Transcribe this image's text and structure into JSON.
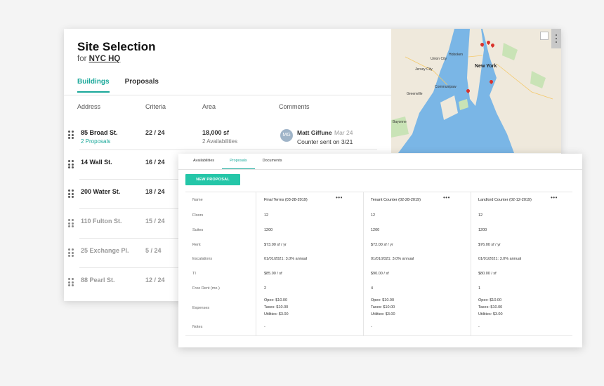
{
  "site": {
    "title": "Site Selection",
    "subtitle_prefix": "for",
    "subtitle_link": "NYC HQ"
  },
  "tabs": [
    {
      "label": "Buildings",
      "active": true
    },
    {
      "label": "Proposals",
      "active": false
    }
  ],
  "columns": [
    "Address",
    "Criteria",
    "Area",
    "Comments"
  ],
  "buildings": [
    {
      "address": "85 Broad St.",
      "sub": "2 Proposals",
      "criteria": "22 / 24",
      "area": "18,000 sf",
      "area_sub": "2 Availabilities",
      "comment": {
        "initials": "MG",
        "name": "Matt Giffune",
        "date": "Mar 24",
        "text": "Counter sent on 3/21"
      }
    },
    {
      "address": "14 Wall St.",
      "criteria": "16 / 24"
    },
    {
      "address": "200 Water St.",
      "criteria": "18 / 24"
    },
    {
      "address": "110 Fulton St.",
      "criteria": "15 / 24"
    },
    {
      "address": "25 Exchange Pl.",
      "criteria": "5 / 24"
    },
    {
      "address": "88 Pearl St.",
      "criteria": "12 / 24"
    }
  ],
  "map": {
    "labels": [
      "New York",
      "Jersey City",
      "Hoboken",
      "Bayonne",
      "Communipaw",
      "Greenville",
      "Union City"
    ],
    "pin_color": "#d9322b",
    "water_color": "#7ab6e6",
    "land_color": "#efe9dc"
  },
  "detail": {
    "tabs": [
      {
        "label": "Availabilities",
        "active": false
      },
      {
        "label": "Proposals",
        "active": true
      },
      {
        "label": "Documents",
        "active": false
      }
    ],
    "new_button": "NEW PROPOSAL",
    "accent": "#24c6a8",
    "row_labels": [
      "Name",
      "Floors",
      "Suites",
      "Rent",
      "Escalations",
      "TI",
      "Free Rent (mo.)",
      "Expenses",
      "Notes"
    ],
    "proposals": [
      {
        "name": "Final Terms (03-28-2019)",
        "floors": "12",
        "suites": "1200",
        "rent": "$73.00 sf / yr",
        "escalations": "01/01/2021: 3.0% annual",
        "ti": "$85.00 / sf",
        "free_rent": "2",
        "expenses": [
          "Opex: $10.00",
          "Taxes: $10.00",
          "Utilities: $3.00"
        ],
        "notes": "-"
      },
      {
        "name": "Tenant Counter (02-28-2019)",
        "floors": "12",
        "suites": "1200",
        "rent": "$72.00 sf / yr",
        "escalations": "01/01/2021: 3.0% annual",
        "ti": "$90.00 / sf",
        "free_rent": "4",
        "expenses": [
          "Opex: $10.00",
          "Taxes: $10.00",
          "Utilities: $3.00"
        ],
        "notes": "-"
      },
      {
        "name": "Landlord Counter (02-12-2019)",
        "floors": "12",
        "suites": "1200",
        "rent": "$76.00 sf / yr",
        "escalations": "01/01/2021: 3.0% annual",
        "ti": "$80.00 / sf",
        "free_rent": "1",
        "expenses": [
          "Opex: $10.00",
          "Taxes: $10.00",
          "Utilities: $3.00"
        ],
        "notes": "-"
      }
    ],
    "more_icon": "more-horizontal-icon"
  }
}
